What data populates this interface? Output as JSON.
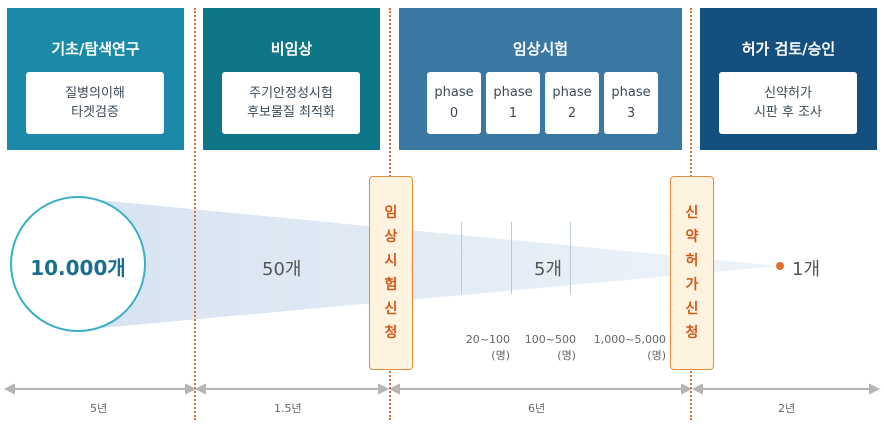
{
  "stages": [
    {
      "title": "기초/탐색연구",
      "lines": [
        "질병의이해",
        "타겟검증"
      ],
      "color": "#1a8aa6"
    },
    {
      "title": "비임상",
      "lines": [
        "주기안정성시험",
        "후보물질 최적화"
      ],
      "color": "#0f7687"
    },
    {
      "title": "임상시험",
      "phases": [
        {
          "label": "phase",
          "num": "0"
        },
        {
          "label": "phase",
          "num": "1"
        },
        {
          "label": "phase",
          "num": "2"
        },
        {
          "label": "phase",
          "num": "3"
        }
      ],
      "color": "#3a78a4"
    },
    {
      "title": "허가 검토/승인",
      "lines": [
        "신약허가",
        "시판 후 조사"
      ],
      "color": "#144f7e"
    }
  ],
  "applications": [
    {
      "chars": [
        "임",
        "상",
        "시",
        "험",
        "신",
        "청"
      ]
    },
    {
      "chars": [
        "신",
        "약",
        "허",
        "가",
        "신",
        "청"
      ]
    }
  ],
  "counts": {
    "start": "10.000개",
    "preclinical": "50개",
    "clinical": "5개",
    "end": "1개"
  },
  "phase_ranges": [
    {
      "range": "20~100",
      "unit": "(명)"
    },
    {
      "range": "100~500",
      "unit": "(명)"
    },
    {
      "range": "1,000~5,000",
      "unit": "(명)"
    }
  ],
  "durations": [
    "5년",
    "1.5년",
    "6년",
    "2년"
  ],
  "colors": {
    "funnel": "#dfe8f4",
    "accent": "#e0702a",
    "circle_border": "#3ab0c6",
    "arrow": "#b5b5b5"
  }
}
